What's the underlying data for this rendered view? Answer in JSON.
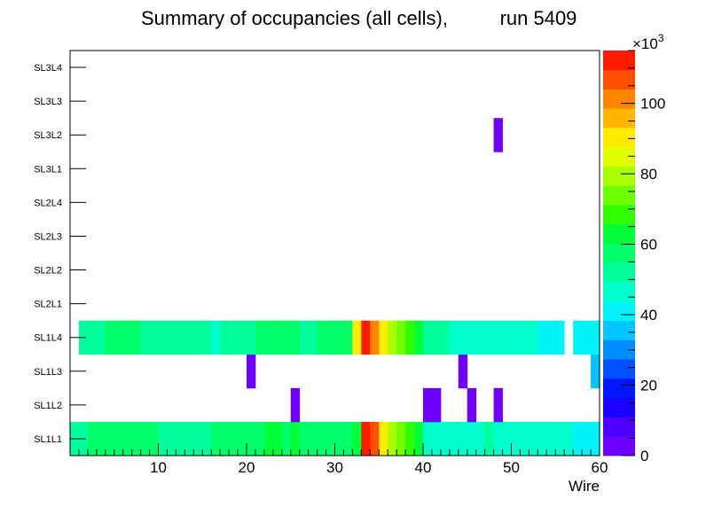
{
  "chart_data": {
    "type": "heatmap",
    "title": "Summary of occupancies (all cells),",
    "run_label": "run 5409",
    "xlabel": "Wire",
    "ylabel": "",
    "xlim": [
      0,
      60
    ],
    "x_ticks": [
      "10",
      "20",
      "30",
      "40",
      "50",
      "60"
    ],
    "x_tick_values": [
      10,
      20,
      30,
      40,
      50,
      60
    ],
    "y_categories": [
      "SL1L1",
      "SL1L2",
      "SL1L3",
      "SL1L4",
      "SL2L1",
      "SL2L2",
      "SL2L3",
      "SL2L4",
      "SL3L1",
      "SL3L2",
      "SL3L3",
      "SL3L4"
    ],
    "z_range": [
      0,
      115000
    ],
    "z_multiplier": "×10",
    "z_multiplier_exp": "3",
    "z_ticks": [
      "0",
      "20",
      "40",
      "60",
      "80",
      "100"
    ],
    "z_tick_values": [
      0,
      20000,
      40000,
      60000,
      80000,
      100000
    ],
    "palette": [
      "#6e00ff",
      "#4b00ff",
      "#1c00ff",
      "#0016ff",
      "#0050ff",
      "#008eff",
      "#00c5ff",
      "#00f4f7",
      "#00ffcc",
      "#00ff9c",
      "#00ff69",
      "#00ff36",
      "#2fff00",
      "#6eff00",
      "#aaff00",
      "#dfff00",
      "#ffeb00",
      "#ffb700",
      "#ff8400",
      "#ff4f00",
      "#ff1a00"
    ],
    "series": [
      {
        "name": "SL1L1",
        "values": [
          52000,
          52000,
          60000,
          60000,
          57000,
          57000,
          57000,
          57000,
          57000,
          57000,
          54000,
          54000,
          54000,
          54000,
          52000,
          52000,
          57000,
          57000,
          57000,
          57000,
          57000,
          57000,
          64000,
          64000,
          60000,
          64000,
          57000,
          57000,
          57000,
          57000,
          57000,
          57000,
          62000,
          110000,
          105000,
          90000,
          80000,
          72000,
          66000,
          64000,
          48000,
          48000,
          48000,
          48000,
          48000,
          48000,
          45000,
          50000,
          44000,
          44000,
          44000,
          44000,
          44000,
          44000,
          44000,
          44000,
          44000,
          40000,
          40000,
          40000
        ]
      },
      {
        "name": "SL1L2",
        "values": [
          0,
          0,
          0,
          0,
          0,
          0,
          0,
          0,
          0,
          0,
          0,
          0,
          0,
          0,
          0,
          0,
          0,
          0,
          0,
          0,
          0,
          0,
          0,
          0,
          0,
          3000,
          0,
          0,
          0,
          0,
          0,
          0,
          0,
          0,
          0,
          0,
          0,
          0,
          0,
          0,
          3000,
          3000,
          0,
          0,
          0,
          3000,
          0,
          0,
          3000,
          0,
          0,
          0,
          0,
          0,
          0,
          0,
          0,
          0,
          0,
          0
        ]
      },
      {
        "name": "SL1L3",
        "values": [
          0,
          0,
          0,
          0,
          0,
          0,
          0,
          0,
          0,
          0,
          0,
          0,
          0,
          0,
          0,
          0,
          0,
          0,
          0,
          0,
          3000,
          0,
          0,
          0,
          0,
          0,
          0,
          0,
          0,
          0,
          0,
          0,
          0,
          0,
          0,
          0,
          0,
          0,
          0,
          0,
          0,
          0,
          0,
          0,
          3000,
          0,
          0,
          0,
          0,
          0,
          0,
          0,
          0,
          0,
          0,
          0,
          0,
          0,
          0,
          33000
        ]
      },
      {
        "name": "SL1L4",
        "values": [
          0,
          52000,
          52000,
          52000,
          55000,
          57000,
          57000,
          57000,
          54000,
          54000,
          54000,
          50000,
          50000,
          54000,
          54000,
          54000,
          46000,
          52000,
          52000,
          52000,
          52000,
          57000,
          57000,
          57000,
          57000,
          57000,
          52000,
          52000,
          57000,
          57000,
          57000,
          57000,
          90000,
          110000,
          100000,
          90000,
          80000,
          72000,
          66000,
          64000,
          52000,
          52000,
          52000,
          48000,
          48000,
          48000,
          48000,
          48000,
          48000,
          48000,
          48000,
          48000,
          48000,
          40000,
          40000,
          40000,
          0,
          40000,
          40000,
          40000
        ]
      },
      {
        "name": "SL2L1",
        "values": [
          0,
          0,
          0,
          0,
          0,
          0,
          0,
          0,
          0,
          0,
          0,
          0,
          0,
          0,
          0,
          0,
          0,
          0,
          0,
          0,
          0,
          0,
          0,
          0,
          0,
          0,
          0,
          0,
          0,
          0,
          0,
          0,
          0,
          0,
          0,
          0,
          0,
          0,
          0,
          0,
          0,
          0,
          0,
          0,
          0,
          0,
          0,
          0,
          0,
          0,
          0,
          0,
          0,
          0,
          0,
          0,
          0,
          0,
          0,
          0
        ]
      },
      {
        "name": "SL2L2",
        "values": [
          0,
          0,
          0,
          0,
          0,
          0,
          0,
          0,
          0,
          0,
          0,
          0,
          0,
          0,
          0,
          0,
          0,
          0,
          0,
          0,
          0,
          0,
          0,
          0,
          0,
          0,
          0,
          0,
          0,
          0,
          0,
          0,
          0,
          0,
          0,
          0,
          0,
          0,
          0,
          0,
          0,
          0,
          0,
          0,
          0,
          0,
          0,
          0,
          0,
          0,
          0,
          0,
          0,
          0,
          0,
          0,
          0,
          0,
          0,
          0
        ]
      },
      {
        "name": "SL2L3",
        "values": [
          0,
          0,
          0,
          0,
          0,
          0,
          0,
          0,
          0,
          0,
          0,
          0,
          0,
          0,
          0,
          0,
          0,
          0,
          0,
          0,
          0,
          0,
          0,
          0,
          0,
          0,
          0,
          0,
          0,
          0,
          0,
          0,
          0,
          0,
          0,
          0,
          0,
          0,
          0,
          0,
          0,
          0,
          0,
          0,
          0,
          0,
          0,
          0,
          0,
          0,
          0,
          0,
          0,
          0,
          0,
          0,
          0,
          0,
          0,
          0
        ]
      },
      {
        "name": "SL2L4",
        "values": [
          0,
          0,
          0,
          0,
          0,
          0,
          0,
          0,
          0,
          0,
          0,
          0,
          0,
          0,
          0,
          0,
          0,
          0,
          0,
          0,
          0,
          0,
          0,
          0,
          0,
          0,
          0,
          0,
          0,
          0,
          0,
          0,
          0,
          0,
          0,
          0,
          0,
          0,
          0,
          0,
          0,
          0,
          0,
          0,
          0,
          0,
          0,
          0,
          0,
          0,
          0,
          0,
          0,
          0,
          0,
          0,
          0,
          0,
          0,
          0
        ]
      },
      {
        "name": "SL3L1",
        "values": [
          0,
          0,
          0,
          0,
          0,
          0,
          0,
          0,
          0,
          0,
          0,
          0,
          0,
          0,
          0,
          0,
          0,
          0,
          0,
          0,
          0,
          0,
          0,
          0,
          0,
          0,
          0,
          0,
          0,
          0,
          0,
          0,
          0,
          0,
          0,
          0,
          0,
          0,
          0,
          0,
          0,
          0,
          0,
          0,
          0,
          0,
          0,
          0,
          0,
          0,
          0,
          0,
          0,
          0,
          0,
          0,
          0,
          0,
          0,
          0
        ]
      },
      {
        "name": "SL3L2",
        "values": [
          0,
          0,
          0,
          0,
          0,
          0,
          0,
          0,
          0,
          0,
          0,
          0,
          0,
          0,
          0,
          0,
          0,
          0,
          0,
          0,
          0,
          0,
          0,
          0,
          0,
          0,
          0,
          0,
          0,
          0,
          0,
          0,
          0,
          0,
          0,
          0,
          0,
          0,
          0,
          0,
          0,
          0,
          0,
          0,
          0,
          0,
          0,
          0,
          3000,
          0,
          0,
          0,
          0,
          0,
          0,
          0,
          0,
          0,
          0,
          0
        ]
      },
      {
        "name": "SL3L3",
        "values": [
          0,
          0,
          0,
          0,
          0,
          0,
          0,
          0,
          0,
          0,
          0,
          0,
          0,
          0,
          0,
          0,
          0,
          0,
          0,
          0,
          0,
          0,
          0,
          0,
          0,
          0,
          0,
          0,
          0,
          0,
          0,
          0,
          0,
          0,
          0,
          0,
          0,
          0,
          0,
          0,
          0,
          0,
          0,
          0,
          0,
          0,
          0,
          0,
          0,
          0,
          0,
          0,
          0,
          0,
          0,
          0,
          0,
          0,
          0,
          0
        ]
      },
      {
        "name": "SL3L4",
        "values": [
          0,
          0,
          0,
          0,
          0,
          0,
          0,
          0,
          0,
          0,
          0,
          0,
          0,
          0,
          0,
          0,
          0,
          0,
          0,
          0,
          0,
          0,
          0,
          0,
          0,
          0,
          0,
          0,
          0,
          0,
          0,
          0,
          0,
          0,
          0,
          0,
          0,
          0,
          0,
          0,
          0,
          0,
          0,
          0,
          0,
          0,
          0,
          0,
          0,
          0,
          0,
          0,
          0,
          0,
          0,
          0,
          0,
          0,
          0,
          0
        ]
      }
    ]
  }
}
